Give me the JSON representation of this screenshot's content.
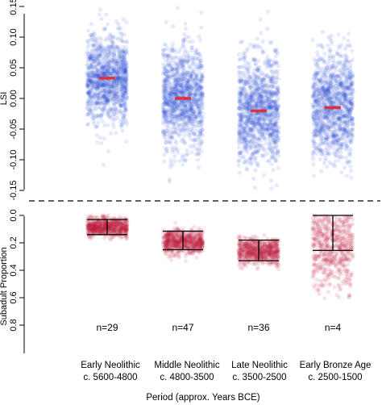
{
  "chart_data": [
    {
      "type": "scatter",
      "panel": "top",
      "ylabel": "LSI",
      "xlabel": "",
      "ylim": [
        -0.16,
        0.16
      ],
      "yticks": [
        0.15,
        0.1,
        0.05,
        0.0,
        -0.05,
        -0.1,
        -0.15
      ],
      "ytick_labels": [
        "0.15",
        "0.10",
        "0.05",
        "0.00",
        "-0.05",
        "-0.10",
        "-0.15"
      ],
      "grid": false,
      "point_color": "#1f3fd6",
      "mean_color": "#e0303a",
      "categories": [
        "Early Neolithic",
        "Middle Neolithic",
        "Late Neolithic",
        "Early Bronze Age"
      ],
      "series": [
        {
          "values": {
            "mean": 0.033,
            "center": 0.032,
            "sd": 0.035,
            "min": -0.12,
            "max": 0.15
          }
        },
        {
          "values": {
            "mean": 0.0,
            "center": 0.0,
            "sd": 0.042,
            "min": -0.14,
            "max": 0.15
          }
        },
        {
          "values": {
            "mean": -0.02,
            "center": -0.02,
            "sd": 0.045,
            "min": -0.155,
            "max": 0.145
          }
        },
        {
          "values": {
            "mean": -0.015,
            "center": -0.012,
            "sd": 0.042,
            "min": -0.13,
            "max": 0.15
          }
        }
      ]
    },
    {
      "type": "scatter",
      "panel": "bottom",
      "ylabel": "Subadult Proportion",
      "xlabel": "Period (approx. Years BCE)",
      "ylim": [
        0.85,
        -0.02
      ],
      "yticks": [
        0.0,
        0.2,
        0.4,
        0.6,
        0.8
      ],
      "ytick_labels": [
        "0.0",
        "0.2",
        "0.4",
        "0.6",
        "0.8"
      ],
      "grid": false,
      "point_color": "#c01a3a",
      "categories": [
        "Early Neolithic",
        "Middle Neolithic",
        "Late Neolithic",
        "Early Bronze Age"
      ],
      "category_subtitles": [
        "c. 5600-4800",
        "c. 4800-3500",
        "c. 3500-2500",
        "c. 2500-1500"
      ],
      "sample_sizes": [
        "n=29",
        "n=47",
        "n=36",
        "n=4"
      ],
      "series": [
        {
          "values": {
            "lower": 0.03,
            "upper": 0.14,
            "center": 0.085,
            "sd": 0.035,
            "min": 0.0,
            "max": 0.3
          }
        },
        {
          "values": {
            "lower": 0.115,
            "upper": 0.25,
            "center": 0.19,
            "sd": 0.045,
            "min": 0.05,
            "max": 0.37
          }
        },
        {
          "values": {
            "lower": 0.18,
            "upper": 0.33,
            "center": 0.26,
            "sd": 0.05,
            "min": 0.14,
            "max": 0.42
          }
        },
        {
          "values": {
            "lower": 0.0,
            "upper": 0.255,
            "center": 0.2,
            "sd": 0.18,
            "min": 0.0,
            "max": 0.62
          }
        }
      ]
    }
  ]
}
